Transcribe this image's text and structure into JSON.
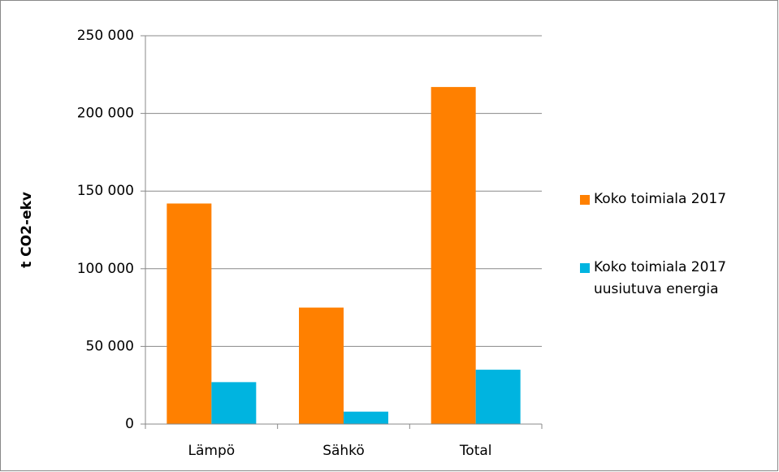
{
  "chart_data": {
    "type": "bar",
    "y_label": "t CO2-ekv",
    "categories": [
      "Lämpö",
      "Sähkö",
      "Total"
    ],
    "series": [
      {
        "name": "Koko toimiala 2017",
        "color": "#ff8000",
        "values": [
          142000,
          75000,
          217000
        ]
      },
      {
        "name": "Koko toimiala 2017 uusiutuva energia",
        "color": "#00b4e0",
        "values": [
          27000,
          8000,
          35000
        ]
      }
    ],
    "ylim": [
      0,
      250000
    ],
    "yticks": [
      0,
      {
        "value": 50000,
        "label": "50 000"
      },
      {
        "value": 100000,
        "label": "100 000"
      },
      {
        "value": 150000,
        "label": "150 000"
      },
      {
        "value": 200000,
        "label": "200 000"
      },
      {
        "value": 250000,
        "label": "250 000"
      }
    ],
    "grid": true,
    "legend": "right"
  }
}
